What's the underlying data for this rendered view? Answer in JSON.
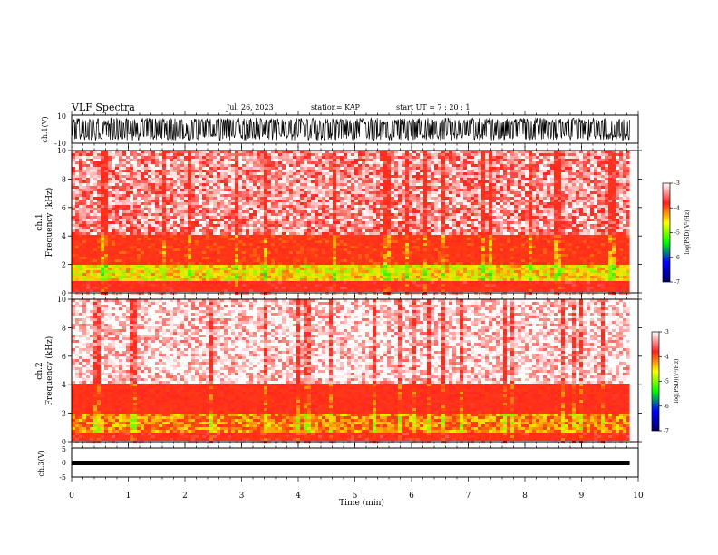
{
  "header": {
    "title": "VLF Spectra",
    "date": "Jul. 26, 2023",
    "station": "station= KAP",
    "start": "start UT =  7 : 20 : 1"
  },
  "colorbar": {
    "label": "log(PSD)(V²/Hz)",
    "ticks": [
      "-3",
      "-4",
      "-5",
      "-6",
      "-7"
    ],
    "stops": [
      "#ffffff",
      "#ff2020",
      "#ffff00",
      "#00ff00",
      "#0000ff",
      "#000060"
    ]
  },
  "chart_data": [
    {
      "type": "line",
      "panel": "ch1-waveform",
      "ylabel": "ch.1(V)",
      "yticklabels": [
        "10",
        "-10"
      ],
      "ylim": [
        -10,
        10
      ],
      "xlim": [
        0,
        10
      ],
      "description": "dense waveform, saturating roughly between -8 and +8 V"
    },
    {
      "type": "heatmap",
      "panel": "ch1-spectrogram",
      "ylabel": "ch.1",
      "ylabel2": "Frequency (kHz)",
      "yticks": [
        0,
        2,
        4,
        6,
        8,
        10
      ],
      "ylim": [
        0,
        10
      ],
      "xlim": [
        0,
        9.85
      ],
      "zlim": [
        -7,
        -3
      ],
      "bands": [
        {
          "from_khz": 0,
          "to_khz": 0.8,
          "level": -3.8
        },
        {
          "from_khz": 0.8,
          "to_khz": 2.0,
          "level": -4.8
        },
        {
          "from_khz": 2.0,
          "to_khz": 4.0,
          "level": -4.1
        },
        {
          "from_khz": 4.0,
          "to_khz": 10.0,
          "level": -3.3
        }
      ]
    },
    {
      "type": "heatmap",
      "panel": "ch2-spectrogram",
      "ylabel": "ch.2",
      "ylabel2": "Frequency (kHz)",
      "yticks": [
        0,
        2,
        4,
        6,
        8,
        10
      ],
      "ylim": [
        0,
        10
      ],
      "xlim": [
        0,
        9.85
      ],
      "zlim": [
        -7,
        -3
      ],
      "bands": [
        {
          "from_khz": 0,
          "to_khz": 0.6,
          "level": -3.8
        },
        {
          "from_khz": 0.6,
          "to_khz": 2.0,
          "level": -4.5
        },
        {
          "from_khz": 2.0,
          "to_khz": 4.0,
          "level": -3.9
        },
        {
          "from_khz": 4.0,
          "to_khz": 10.0,
          "level": -3.1
        }
      ]
    },
    {
      "type": "line",
      "panel": "ch3-waveform",
      "ylabel": "ch.3(V)",
      "yticklabels": [
        "5",
        "0",
        "-5"
      ],
      "ylim": [
        -5,
        5
      ],
      "xlim": [
        0,
        10
      ],
      "description": "thin band near -1.6 V"
    }
  ],
  "xaxis": {
    "label": "Time (min)",
    "ticks": [
      "0",
      "1",
      "2",
      "3",
      "4",
      "5",
      "6",
      "7",
      "8",
      "9",
      "10"
    ],
    "range": [
      0,
      10
    ]
  }
}
